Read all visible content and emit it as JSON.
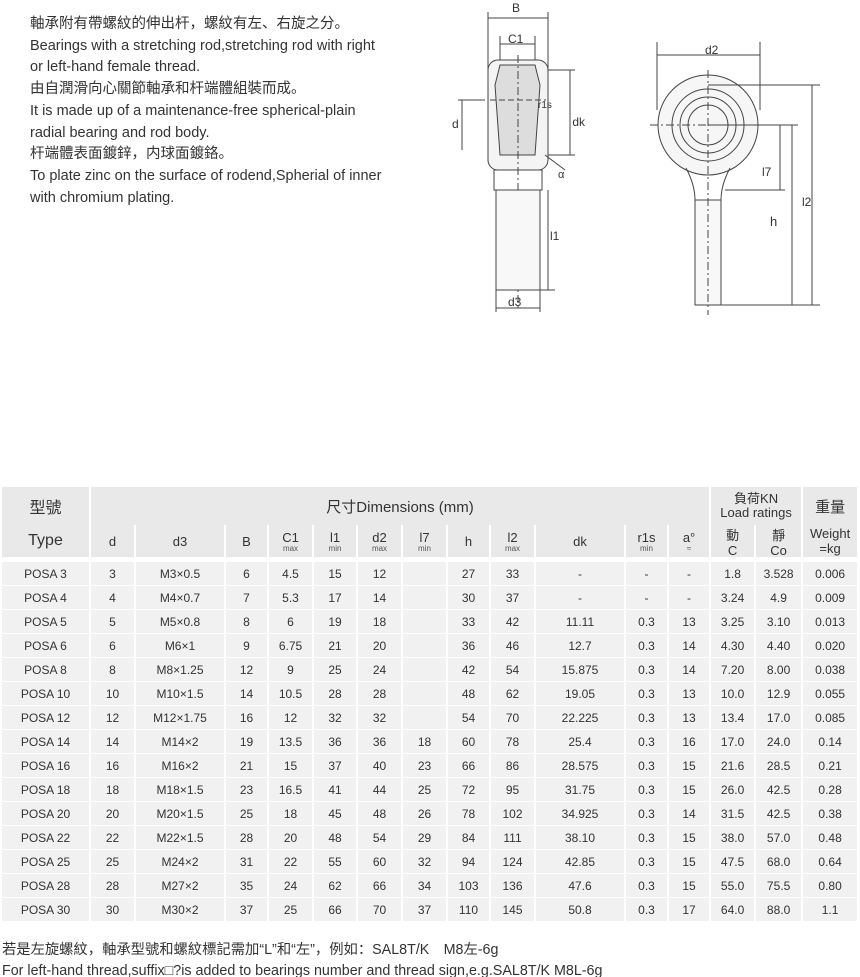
{
  "intro": [
    "軸承附有帶螺紋的伸出杆，螺紋有左、右旋之分。",
    "Bearings with a stretching rod,stretching rod with right",
    "or left-hand female thread.",
    "由自潤滑向心關節軸承和杆端體組裝而成。",
    "It is made up of a maintenance-free spherical-plain",
    "radial bearing and rod body.",
    "杆端體表面鍍鋅，内球面鍍鉻。",
    "To plate zinc on the surface of rodend,Spherial of inner",
    "with chromium plating."
  ],
  "diagram_labels": {
    "B": "B",
    "C1": "C1",
    "d": "d",
    "r1s": "r1s",
    "dk": "dk",
    "alpha": "α",
    "l1": "l1",
    "d3": "d3",
    "d2": "d2",
    "l7": "l7",
    "h": "h",
    "l2": "l2"
  },
  "table": {
    "type_cn": "型號",
    "type_en": "Type",
    "dimensions": "尺寸Dimensions (mm)",
    "load_cn": "負荷KN",
    "load_en": "Load ratings",
    "weight_cn": "重量",
    "weight_en": "Weight",
    "weight_unit": "=kg",
    "columns": [
      {
        "main": "d",
        "sub": ""
      },
      {
        "main": "d3",
        "sub": ""
      },
      {
        "main": "B",
        "sub": ""
      },
      {
        "main": "C1",
        "sub": "max"
      },
      {
        "main": "l1",
        "sub": "min"
      },
      {
        "main": "d2",
        "sub": "max"
      },
      {
        "main": "l7",
        "sub": "min"
      },
      {
        "main": "h",
        "sub": ""
      },
      {
        "main": "l2",
        "sub": "max"
      },
      {
        "main": "dk",
        "sub": ""
      },
      {
        "main": "r1s",
        "sub": "min"
      },
      {
        "main": "a°",
        "sub": "≈"
      },
      {
        "main": "動",
        "sub": "C"
      },
      {
        "main": "靜",
        "sub": "Co"
      }
    ],
    "rows": [
      [
        "POSA 3",
        "3",
        "M3×0.5",
        "6",
        "4.5",
        "15",
        "12",
        "",
        "27",
        "33",
        "-",
        "-",
        "-",
        "1.8",
        "3.528",
        "0.006"
      ],
      [
        "POSA 4",
        "4",
        "M4×0.7",
        "7",
        "5.3",
        "17",
        "14",
        "",
        "30",
        "37",
        "-",
        "-",
        "-",
        "3.24",
        "4.9",
        "0.009"
      ],
      [
        "POSA 5",
        "5",
        "M5×0.8",
        "8",
        "6",
        "19",
        "18",
        "",
        "33",
        "42",
        "11.11",
        "0.3",
        "13",
        "3.25",
        "3.10",
        "0.013"
      ],
      [
        "POSA 6",
        "6",
        "M6×1",
        "9",
        "6.75",
        "21",
        "20",
        "",
        "36",
        "46",
        "12.7",
        "0.3",
        "14",
        "4.30",
        "4.40",
        "0.020"
      ],
      [
        "POSA 8",
        "8",
        "M8×1.25",
        "12",
        "9",
        "25",
        "24",
        "",
        "42",
        "54",
        "15.875",
        "0.3",
        "14",
        "7.20",
        "8.00",
        "0.038"
      ],
      [
        "POSA 10",
        "10",
        "M10×1.5",
        "14",
        "10.5",
        "28",
        "28",
        "",
        "48",
        "62",
        "19.05",
        "0.3",
        "13",
        "10.0",
        "12.9",
        "0.055"
      ],
      [
        "POSA 12",
        "12",
        "M12×1.75",
        "16",
        "12",
        "32",
        "32",
        "",
        "54",
        "70",
        "22.225",
        "0.3",
        "13",
        "13.4",
        "17.0",
        "0.085"
      ],
      [
        "POSA 14",
        "14",
        "M14×2",
        "19",
        "13.5",
        "36",
        "36",
        "18",
        "60",
        "78",
        "25.4",
        "0.3",
        "16",
        "17.0",
        "24.0",
        "0.14"
      ],
      [
        "POSA 16",
        "16",
        "M16×2",
        "21",
        "15",
        "37",
        "40",
        "23",
        "66",
        "86",
        "28.575",
        "0.3",
        "15",
        "21.6",
        "28.5",
        "0.21"
      ],
      [
        "POSA 18",
        "18",
        "M18×1.5",
        "23",
        "16.5",
        "41",
        "44",
        "25",
        "72",
        "95",
        "31.75",
        "0.3",
        "15",
        "26.0",
        "42.5",
        "0.28"
      ],
      [
        "POSA 20",
        "20",
        "M20×1.5",
        "25",
        "18",
        "45",
        "48",
        "26",
        "78",
        "102",
        "34.925",
        "0.3",
        "14",
        "31.5",
        "42.5",
        "0.38"
      ],
      [
        "POSA 22",
        "22",
        "M22×1.5",
        "28",
        "20",
        "48",
        "54",
        "29",
        "84",
        "111",
        "38.10",
        "0.3",
        "15",
        "38.0",
        "57.0",
        "0.48"
      ],
      [
        "POSA 25",
        "25",
        "M24×2",
        "31",
        "22",
        "55",
        "60",
        "32",
        "94",
        "124",
        "42.85",
        "0.3",
        "15",
        "47.5",
        "68.0",
        "0.64"
      ],
      [
        "POSA 28",
        "28",
        "M27×2",
        "35",
        "24",
        "62",
        "66",
        "34",
        "103",
        "136",
        "47.6",
        "0.3",
        "15",
        "55.0",
        "75.5",
        "0.80"
      ],
      [
        "POSA 30",
        "30",
        "M30×2",
        "37",
        "25",
        "66",
        "70",
        "37",
        "110",
        "145",
        "50.8",
        "0.3",
        "17",
        "64.0",
        "88.0",
        "1.1"
      ]
    ]
  },
  "notes": [
    "若是左旋螺紋，軸承型號和螺紋標記需加“L”和“左”，例如：SAL8T/K　M8左-6g",
    "For left-hand thread,suffix□?is added to bearings number and thread sign,e.g.SAL8T/K  M8L-6g"
  ]
}
